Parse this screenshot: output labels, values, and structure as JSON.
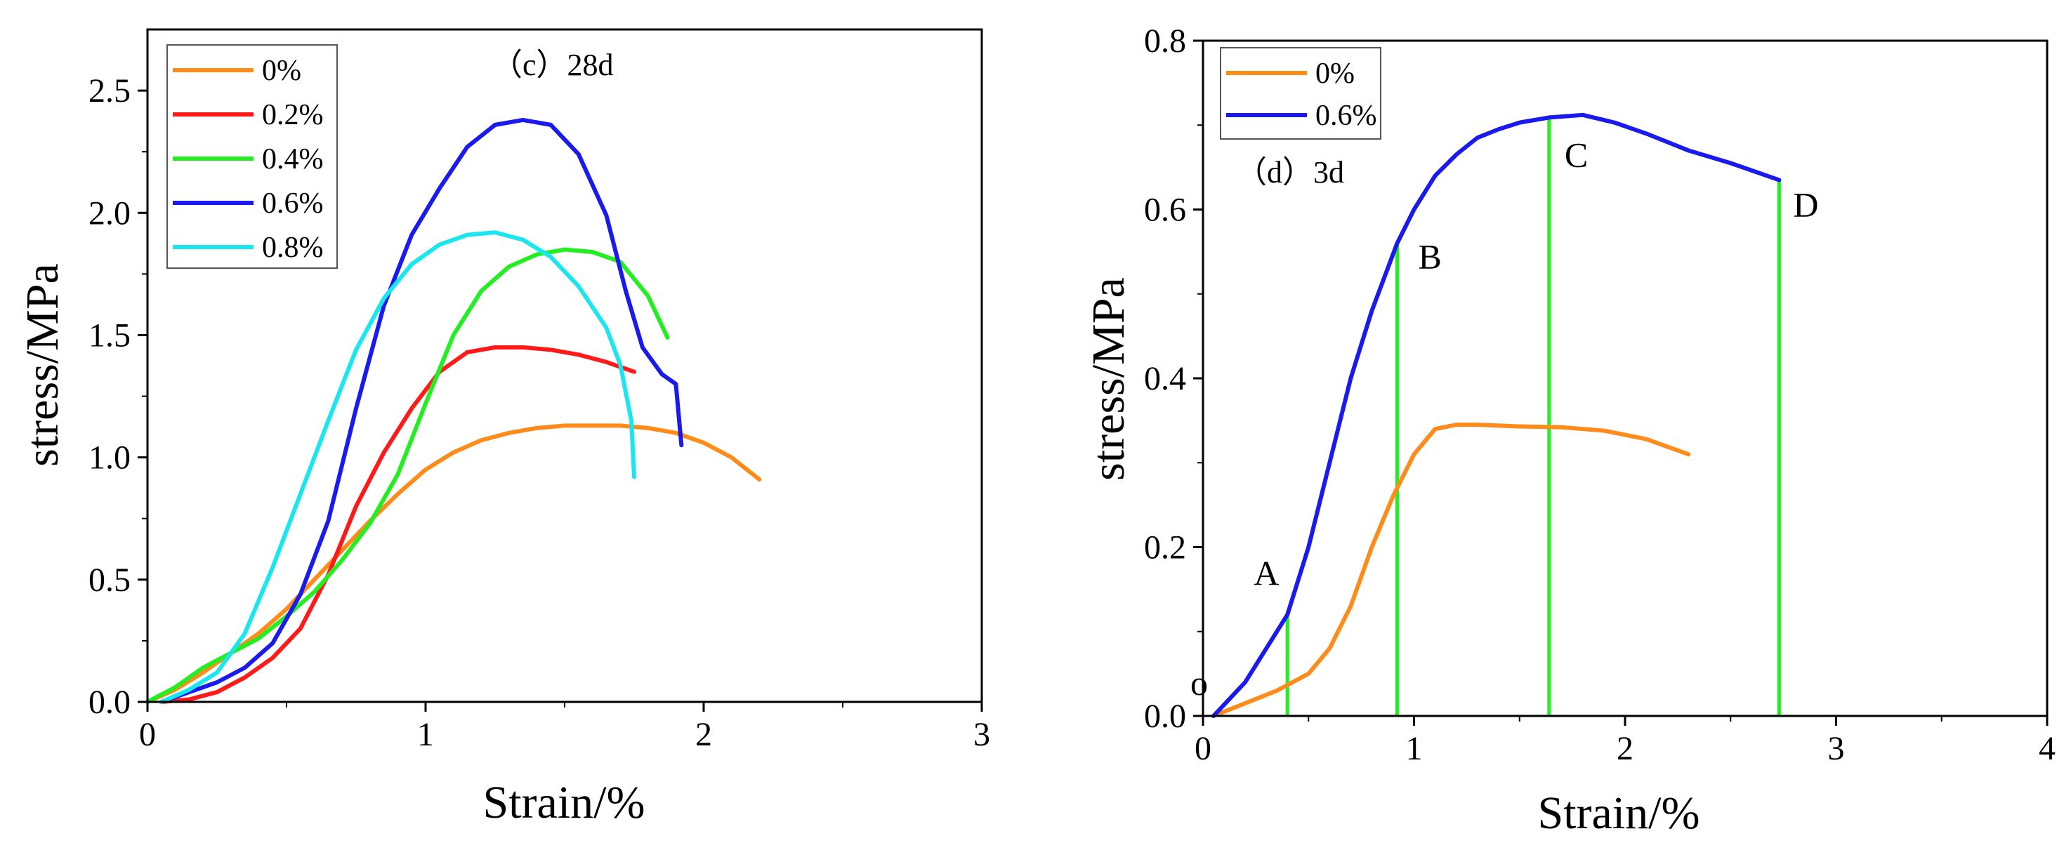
{
  "chart_data": [
    {
      "type": "line",
      "panel": "left",
      "annotation": "（c）28d",
      "xlabel": "Strain/%",
      "ylabel": "stress/MPa",
      "xlim": [
        0,
        3
      ],
      "ylim": [
        0,
        2.75
      ],
      "xticks": [
        "0",
        "1",
        "2",
        "3"
      ],
      "yticks": [
        "0.0",
        "0.5",
        "1.0",
        "1.5",
        "2.0",
        "2.5"
      ],
      "legend_position": "top-left",
      "series": [
        {
          "name": "0%",
          "color": "#ff8c1a",
          "x": [
            0.0,
            0.1,
            0.2,
            0.3,
            0.4,
            0.5,
            0.6,
            0.7,
            0.8,
            0.9,
            1.0,
            1.1,
            1.2,
            1.3,
            1.4,
            1.5,
            1.6,
            1.7,
            1.8,
            1.9,
            2.0,
            2.1,
            2.2
          ],
          "y": [
            0.0,
            0.05,
            0.12,
            0.2,
            0.28,
            0.38,
            0.5,
            0.62,
            0.74,
            0.85,
            0.95,
            1.02,
            1.07,
            1.1,
            1.12,
            1.13,
            1.13,
            1.13,
            1.12,
            1.1,
            1.06,
            1.0,
            0.91
          ]
        },
        {
          "name": "0.2%",
          "color": "#ff1a1a",
          "x": [
            0.05,
            0.15,
            0.25,
            0.35,
            0.45,
            0.55,
            0.65,
            0.75,
            0.85,
            0.95,
            1.05,
            1.15,
            1.25,
            1.35,
            1.45,
            1.55,
            1.65,
            1.75
          ],
          "y": [
            0.0,
            0.01,
            0.04,
            0.1,
            0.18,
            0.3,
            0.52,
            0.8,
            1.02,
            1.2,
            1.35,
            1.43,
            1.45,
            1.45,
            1.44,
            1.42,
            1.39,
            1.35
          ]
        },
        {
          "name": "0.4%",
          "color": "#22ee22",
          "x": [
            0.0,
            0.1,
            0.2,
            0.3,
            0.4,
            0.5,
            0.6,
            0.7,
            0.8,
            0.9,
            1.0,
            1.1,
            1.2,
            1.3,
            1.4,
            1.5,
            1.6,
            1.7,
            1.8,
            1.87
          ],
          "y": [
            0.0,
            0.06,
            0.14,
            0.2,
            0.26,
            0.35,
            0.45,
            0.58,
            0.73,
            0.93,
            1.22,
            1.5,
            1.68,
            1.78,
            1.83,
            1.85,
            1.84,
            1.8,
            1.66,
            1.49
          ]
        },
        {
          "name": "0.6%",
          "color": "#1a1aee",
          "x": [
            0.05,
            0.15,
            0.25,
            0.35,
            0.45,
            0.55,
            0.65,
            0.75,
            0.85,
            0.95,
            1.05,
            1.15,
            1.25,
            1.35,
            1.45,
            1.55,
            1.65,
            1.72,
            1.78,
            1.85,
            1.9,
            1.92
          ],
          "y": [
            0.0,
            0.04,
            0.08,
            0.14,
            0.24,
            0.44,
            0.74,
            1.2,
            1.62,
            1.91,
            2.1,
            2.27,
            2.36,
            2.38,
            2.36,
            2.24,
            1.99,
            1.68,
            1.45,
            1.34,
            1.3,
            1.05
          ]
        },
        {
          "name": "0.8%",
          "color": "#1ae6f0",
          "x": [
            0.05,
            0.15,
            0.25,
            0.35,
            0.45,
            0.55,
            0.65,
            0.75,
            0.85,
            0.95,
            1.05,
            1.15,
            1.25,
            1.35,
            1.45,
            1.55,
            1.65,
            1.7,
            1.74,
            1.75
          ],
          "y": [
            0.0,
            0.05,
            0.12,
            0.28,
            0.55,
            0.85,
            1.15,
            1.44,
            1.65,
            1.79,
            1.87,
            1.91,
            1.92,
            1.89,
            1.82,
            1.7,
            1.53,
            1.38,
            1.15,
            0.92
          ]
        }
      ]
    },
    {
      "type": "line",
      "panel": "right",
      "annotation": "（d）3d",
      "xlabel": "Strain/%",
      "ylabel": "stress/MPa",
      "xlim": [
        0,
        4
      ],
      "ylim": [
        0,
        0.8
      ],
      "xticks": [
        "0",
        "1",
        "2",
        "3",
        "4"
      ],
      "yticks": [
        "0.0",
        "0.2",
        "0.4",
        "0.6",
        "0.8"
      ],
      "legend_position": "top-left",
      "series": [
        {
          "name": "0%",
          "color": "#ff8c1a",
          "x": [
            0.05,
            0.2,
            0.35,
            0.5,
            0.6,
            0.7,
            0.8,
            0.9,
            1.0,
            1.1,
            1.2,
            1.3,
            1.5,
            1.7,
            1.9,
            2.1,
            2.3
          ],
          "y": [
            0.0,
            0.015,
            0.03,
            0.05,
            0.08,
            0.13,
            0.2,
            0.26,
            0.31,
            0.34,
            0.345,
            0.345,
            0.343,
            0.342,
            0.338,
            0.328,
            0.31
          ]
        },
        {
          "name": "0.6%",
          "color": "#1a1aee",
          "x": [
            0.05,
            0.2,
            0.4,
            0.5,
            0.6,
            0.7,
            0.8,
            0.92,
            1.0,
            1.1,
            1.2,
            1.3,
            1.4,
            1.5,
            1.64,
            1.8,
            1.95,
            2.1,
            2.3,
            2.5,
            2.73
          ],
          "y": [
            0.0,
            0.04,
            0.12,
            0.2,
            0.3,
            0.4,
            0.48,
            0.56,
            0.6,
            0.64,
            0.665,
            0.685,
            0.695,
            0.703,
            0.709,
            0.712,
            0.703,
            0.69,
            0.67,
            0.655,
            0.635
          ]
        }
      ],
      "markers": [
        {
          "label": "o",
          "x": 0.05,
          "y": 0.0
        },
        {
          "label": "A",
          "x": 0.4,
          "y": 0.12
        },
        {
          "label": "B",
          "x": 0.92,
          "y": 0.56
        },
        {
          "label": "C",
          "x": 1.64,
          "y": 0.709
        },
        {
          "label": "D",
          "x": 2.73,
          "y": 0.635
        }
      ],
      "marker_line_color": "#22ee22"
    }
  ]
}
